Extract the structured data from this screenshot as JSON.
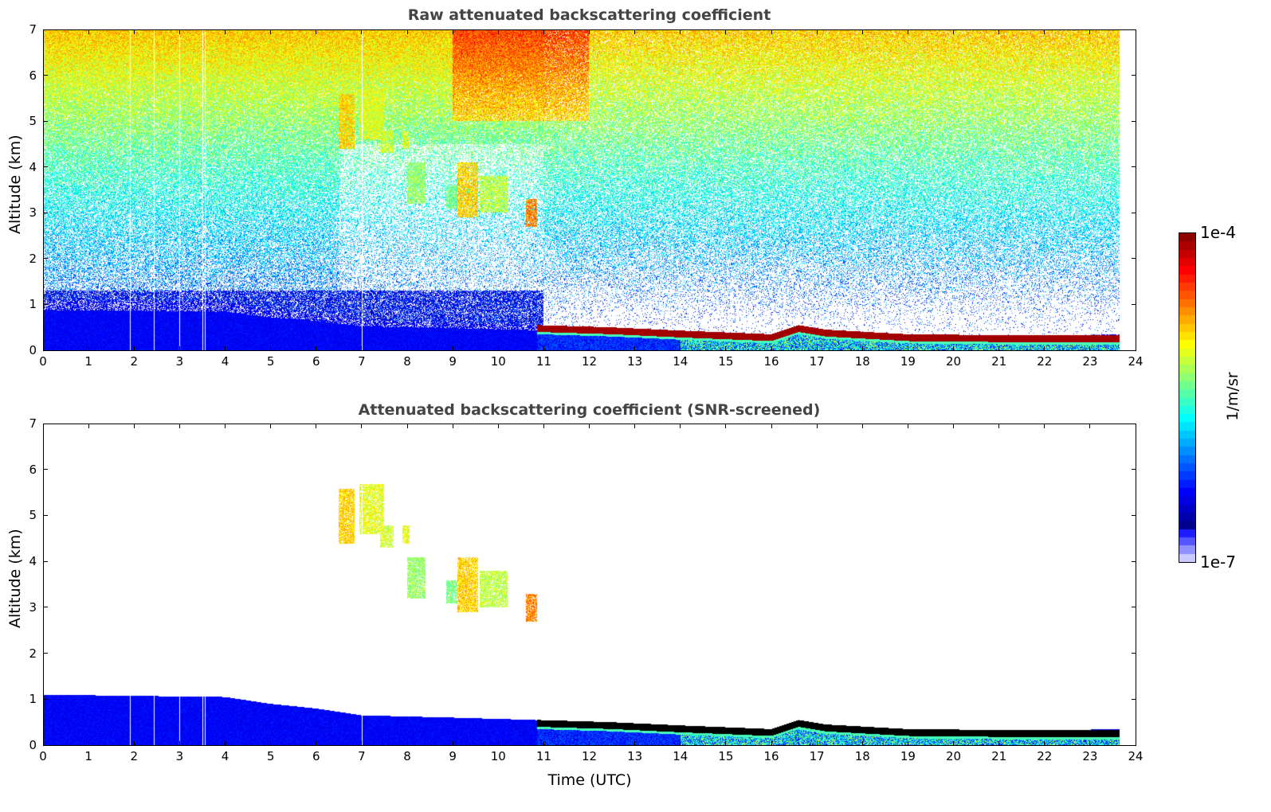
{
  "chart_data": [
    {
      "type": "heatmap",
      "title": "Raw attenuated backscattering coefficient",
      "xlabel": "",
      "ylabel": "Altitude (km)",
      "xlim": [
        0,
        24
      ],
      "ylim": [
        0,
        7
      ],
      "xticks": [
        "0",
        "1",
        "2",
        "3",
        "4",
        "5",
        "6",
        "7",
        "8",
        "9",
        "10",
        "11",
        "12",
        "13",
        "14",
        "15",
        "16",
        "17",
        "18",
        "19",
        "20",
        "21",
        "22",
        "23",
        "24"
      ],
      "yticks": [
        "0",
        "1",
        "2",
        "3",
        "4",
        "5",
        "6",
        "7"
      ],
      "screened": false
    },
    {
      "type": "heatmap",
      "title": "Attenuated backscattering coefficient (SNR-screened)",
      "xlabel": "Time (UTC)",
      "ylabel": "Altitude (km)",
      "xlim": [
        0,
        24
      ],
      "ylim": [
        0,
        7
      ],
      "xticks": [
        "0",
        "1",
        "2",
        "3",
        "4",
        "5",
        "6",
        "7",
        "8",
        "9",
        "10",
        "11",
        "12",
        "13",
        "14",
        "15",
        "16",
        "17",
        "18",
        "19",
        "20",
        "21",
        "22",
        "23",
        "24"
      ],
      "yticks": [
        "0",
        "1",
        "2",
        "3",
        "4",
        "5",
        "6",
        "7"
      ],
      "screened": true
    }
  ],
  "features": {
    "data_end_time": 23.65,
    "gap_times": [
      1.9,
      2.43,
      3.0,
      3.5,
      3.56,
      7.0
    ],
    "boundary_layer_top_km": [
      [
        0,
        1.1
      ],
      [
        4,
        1.05
      ],
      [
        5,
        0.9
      ],
      [
        6,
        0.8
      ],
      [
        7,
        0.65
      ],
      [
        9,
        0.6
      ],
      [
        10.8,
        0.55
      ],
      [
        11,
        0.5
      ],
      [
        12.5,
        0.45
      ],
      [
        14,
        0.36
      ],
      [
        16,
        0.3
      ],
      [
        16.6,
        0.52
      ],
      [
        17.2,
        0.42
      ],
      [
        19,
        0.33
      ],
      [
        21,
        0.3
      ],
      [
        23.6,
        0.35
      ]
    ],
    "aerosol_layer_top_km": [
      [
        10.85,
        0.5
      ],
      [
        12.5,
        0.45
      ],
      [
        14,
        0.38
      ],
      [
        16,
        0.3
      ],
      [
        16.6,
        0.5
      ],
      [
        17.2,
        0.4
      ],
      [
        19,
        0.3
      ],
      [
        21,
        0.28
      ],
      [
        23.6,
        0.28
      ]
    ],
    "cloud_patches": [
      {
        "t0": 6.5,
        "t1": 6.85,
        "zb": 4.4,
        "zt": 5.6,
        "level": 0.68
      },
      {
        "t0": 6.95,
        "t1": 7.5,
        "zb": 4.6,
        "zt": 5.7,
        "level": 0.62
      },
      {
        "t0": 7.4,
        "t1": 7.7,
        "zb": 4.3,
        "zt": 4.8,
        "level": 0.6
      },
      {
        "t0": 7.9,
        "t1": 8.05,
        "zb": 4.4,
        "zt": 4.8,
        "level": 0.62
      },
      {
        "t0": 8.0,
        "t1": 8.4,
        "zb": 3.2,
        "zt": 4.1,
        "level": 0.55
      },
      {
        "t0": 8.85,
        "t1": 9.1,
        "zb": 3.1,
        "zt": 3.6,
        "level": 0.52
      },
      {
        "t0": 9.1,
        "t1": 9.55,
        "zb": 2.9,
        "zt": 4.1,
        "level": 0.68
      },
      {
        "t0": 9.6,
        "t1": 10.2,
        "zb": 3.0,
        "zt": 3.8,
        "level": 0.58
      },
      {
        "t0": 10.6,
        "t1": 10.85,
        "zb": 2.7,
        "zt": 3.3,
        "level": 0.75
      }
    ]
  },
  "colorbar": {
    "label": "1/m/sr",
    "max_label": "1e-4",
    "min_label": "1e-7",
    "range": [
      1e-07,
      0.0001
    ],
    "scale": "log",
    "colormap": "jet-with-white-low"
  }
}
